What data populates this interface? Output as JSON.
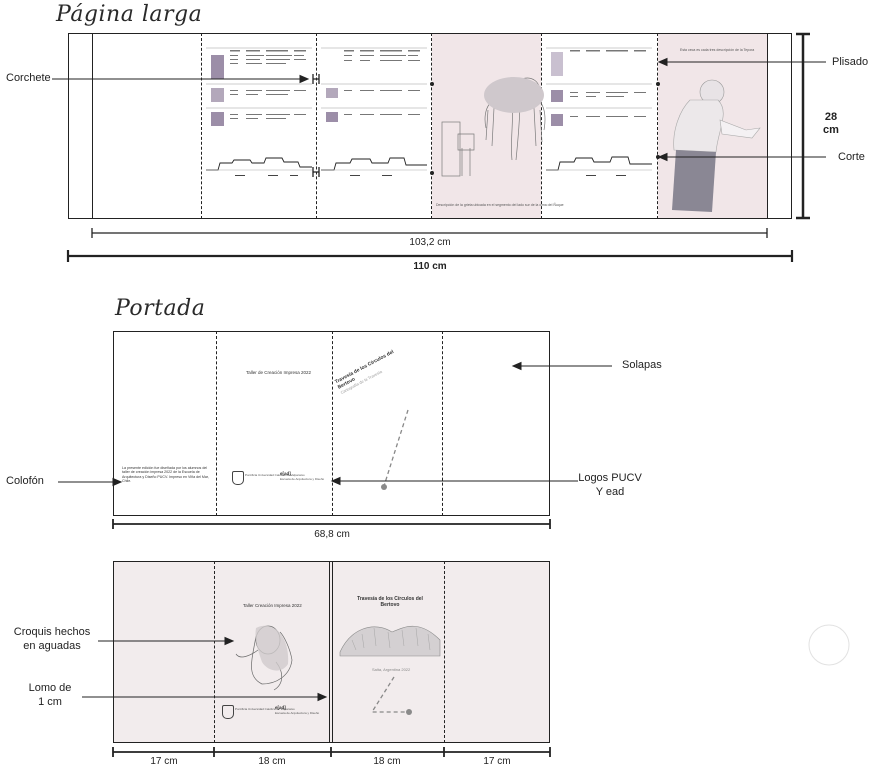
{
  "sections": {
    "long_page_title": "Página larga",
    "cover_title": "Portada"
  },
  "long_page": {
    "labels": {
      "corchete": "Corchete",
      "plisado": "Plisado",
      "corte": "Corte",
      "height_value": "28",
      "height_unit": "cm"
    },
    "dimensions": {
      "inner_width": "103,2 cm",
      "outer_width": "110 cm"
    },
    "panel_caption": "Descripción de la grieta ubicada en el segmento del lado sur de la cima del Ñuque",
    "figure_caption": "Esta ceca es cada tres descripción de la Tepora"
  },
  "cover": {
    "labels": {
      "solapas": "Solapas",
      "colofon": "Colofón",
      "logos_line1": "Logos PUCV",
      "logos_line2": "Y ead",
      "croquis_line1": "Croquis hechos",
      "croquis_line2": "en aguadas",
      "lomo_line1": "Lomo de",
      "lomo_line2": "1 cm"
    },
    "top": {
      "workshop_title": "Taller de Creación Impresa 2022",
      "diagonal_title_line1": "Travesía de los Círculos del",
      "diagonal_title_line2": "Bertovo",
      "diagonal_subtitle": "Cartografía de la Travesía",
      "colophon_text": "La presente edición fue diseñada por los alumnos del taller de creación impresa 2022 de la Escuela de Arquitectura y Diseño PUCV. Impreso en Viña del Mar, Chile.",
      "ead_mark": "e[ad]",
      "ead_name": "Escuela de Arquitectura y Diseño",
      "univ_name": "Pontificia Universidad Católica de Valparaíso",
      "width": "68,8 cm"
    },
    "bottom": {
      "workshop_title": "Taller Creación Impresa 2022",
      "book_title_line1": "Travesía de los Círculos del",
      "book_title_line2": "Bertovo",
      "place_date": "Salta, Argentina 2022",
      "ead_mark": "e[ad]",
      "ead_name": "Escuela de Arquitectura y Diseño",
      "univ_name": "Pontificia Universidad Católica de Valparaíso",
      "widths": [
        "17 cm",
        "18 cm",
        "18 cm",
        "17 cm"
      ]
    }
  },
  "colors": {
    "panel_tint": "#f2eced",
    "pink_panel": "#f1e6e8",
    "swatch_purple": "#9c8ea8",
    "swatch_light": "#d8d0dc",
    "line": "#222222",
    "gray_dot": "#8a8a8a"
  }
}
